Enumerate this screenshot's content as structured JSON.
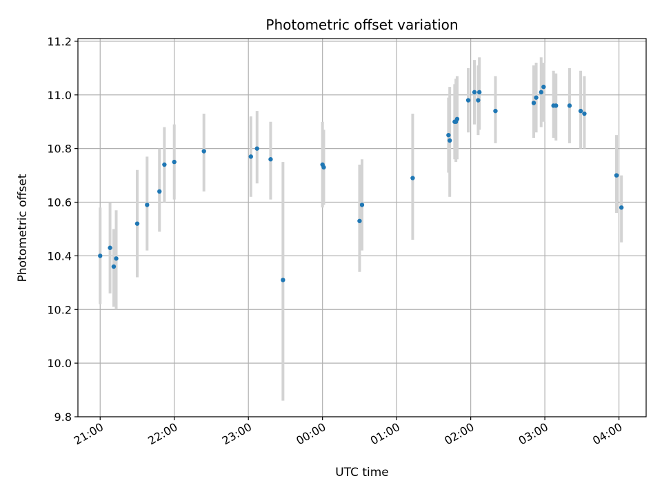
{
  "chart_data": {
    "type": "scatter",
    "title": "Photometric offset variation",
    "xlabel": "UTC time",
    "ylabel": "Photometric offset",
    "x_axis_type": "time",
    "xlim": [
      "20:42",
      "04:22"
    ],
    "ylim": [
      9.8,
      11.21
    ],
    "x_ticks": [
      "21:00",
      "22:00",
      "23:00",
      "00:00",
      "01:00",
      "02:00",
      "03:00",
      "04:00"
    ],
    "y_ticks": [
      9.8,
      10.0,
      10.2,
      10.4,
      10.6,
      10.8,
      11.0,
      11.2
    ],
    "y_tick_labels": [
      "9.8",
      "10.0",
      "10.2",
      "10.4",
      "10.6",
      "10.8",
      "11.0",
      "11.2"
    ],
    "grid": true,
    "point_color": "#1f77b4",
    "errorbar_color": "#d3d3d3",
    "points": [
      {
        "x": "21:00",
        "y": 10.4,
        "yerr_low": 10.22,
        "yerr_high": 10.58
      },
      {
        "x": "21:08",
        "y": 10.43,
        "yerr_low": 10.26,
        "yerr_high": 10.6
      },
      {
        "x": "21:11",
        "y": 10.36,
        "yerr_low": 10.21,
        "yerr_high": 10.5
      },
      {
        "x": "21:13",
        "y": 10.39,
        "yerr_low": 10.2,
        "yerr_high": 10.57
      },
      {
        "x": "21:30",
        "y": 10.52,
        "yerr_low": 10.32,
        "yerr_high": 10.72
      },
      {
        "x": "21:38",
        "y": 10.59,
        "yerr_low": 10.42,
        "yerr_high": 10.77
      },
      {
        "x": "21:48",
        "y": 10.64,
        "yerr_low": 10.49,
        "yerr_high": 10.8
      },
      {
        "x": "21:52",
        "y": 10.74,
        "yerr_low": 10.6,
        "yerr_high": 10.88
      },
      {
        "x": "22:00",
        "y": 10.75,
        "yerr_low": 10.61,
        "yerr_high": 10.89
      },
      {
        "x": "22:24",
        "y": 10.79,
        "yerr_low": 10.64,
        "yerr_high": 10.93
      },
      {
        "x": "23:02",
        "y": 10.77,
        "yerr_low": 10.62,
        "yerr_high": 10.92
      },
      {
        "x": "23:07",
        "y": 10.8,
        "yerr_low": 10.67,
        "yerr_high": 10.94
      },
      {
        "x": "23:18",
        "y": 10.76,
        "yerr_low": 10.61,
        "yerr_high": 10.9
      },
      {
        "x": "23:28",
        "y": 10.31,
        "yerr_low": 9.86,
        "yerr_high": 10.75
      },
      {
        "x": "00:00",
        "y": 10.74,
        "yerr_low": 10.58,
        "yerr_high": 10.9
      },
      {
        "x": "00:01",
        "y": 10.73,
        "yerr_low": 10.59,
        "yerr_high": 10.87
      },
      {
        "x": "00:30",
        "y": 10.53,
        "yerr_low": 10.34,
        "yerr_high": 10.74
      },
      {
        "x": "00:32",
        "y": 10.59,
        "yerr_low": 10.42,
        "yerr_high": 10.76
      },
      {
        "x": "01:13",
        "y": 10.69,
        "yerr_low": 10.46,
        "yerr_high": 10.93
      },
      {
        "x": "01:42",
        "y": 10.85,
        "yerr_low": 10.71,
        "yerr_high": 10.99
      },
      {
        "x": "01:43",
        "y": 10.83,
        "yerr_low": 10.62,
        "yerr_high": 11.03
      },
      {
        "x": "01:47",
        "y": 10.9,
        "yerr_low": 10.76,
        "yerr_high": 11.04
      },
      {
        "x": "01:48",
        "y": 10.9,
        "yerr_low": 10.75,
        "yerr_high": 11.06
      },
      {
        "x": "01:49",
        "y": 10.91,
        "yerr_low": 10.76,
        "yerr_high": 11.07
      },
      {
        "x": "01:58",
        "y": 10.98,
        "yerr_low": 10.86,
        "yerr_high": 11.1
      },
      {
        "x": "02:03",
        "y": 11.01,
        "yerr_low": 10.89,
        "yerr_high": 11.13
      },
      {
        "x": "02:06",
        "y": 10.98,
        "yerr_low": 10.85,
        "yerr_high": 11.11
      },
      {
        "x": "02:07",
        "y": 11.01,
        "yerr_low": 10.87,
        "yerr_high": 11.14
      },
      {
        "x": "02:20",
        "y": 10.94,
        "yerr_low": 10.82,
        "yerr_high": 11.07
      },
      {
        "x": "02:51",
        "y": 10.97,
        "yerr_low": 10.84,
        "yerr_high": 11.11
      },
      {
        "x": "02:53",
        "y": 10.99,
        "yerr_low": 10.86,
        "yerr_high": 11.12
      },
      {
        "x": "02:57",
        "y": 11.01,
        "yerr_low": 10.88,
        "yerr_high": 11.14
      },
      {
        "x": "02:59",
        "y": 11.03,
        "yerr_low": 10.9,
        "yerr_high": 11.12
      },
      {
        "x": "03:07",
        "y": 10.96,
        "yerr_low": 10.84,
        "yerr_high": 11.09
      },
      {
        "x": "03:09",
        "y": 10.96,
        "yerr_low": 10.83,
        "yerr_high": 11.08
      },
      {
        "x": "03:20",
        "y": 10.96,
        "yerr_low": 10.82,
        "yerr_high": 11.1
      },
      {
        "x": "03:29",
        "y": 10.94,
        "yerr_low": 10.8,
        "yerr_high": 11.09
      },
      {
        "x": "03:32",
        "y": 10.93,
        "yerr_low": 10.8,
        "yerr_high": 11.07
      },
      {
        "x": "03:58",
        "y": 10.7,
        "yerr_low": 10.56,
        "yerr_high": 10.85
      },
      {
        "x": "04:02",
        "y": 10.58,
        "yerr_low": 10.45,
        "yerr_high": 10.7
      }
    ]
  }
}
